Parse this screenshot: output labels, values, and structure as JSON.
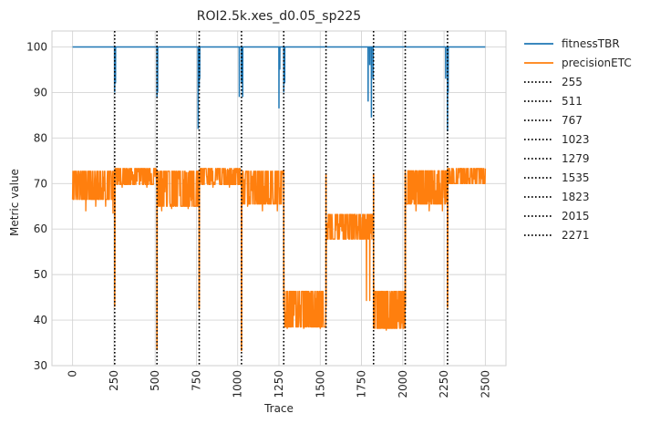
{
  "chart_data": {
    "type": "line",
    "title": "ROI2.5k.xes_d0.05_sp225",
    "xlabel": "Trace",
    "ylabel": "Metric value",
    "xlim": [
      -125,
      2625
    ],
    "ylim": [
      30,
      103.5
    ],
    "xticks": [
      0,
      250,
      500,
      750,
      1000,
      1250,
      1500,
      1750,
      2000,
      2250,
      2500
    ],
    "yticks": [
      30,
      40,
      50,
      60,
      70,
      80,
      90,
      100
    ],
    "xtick_labels": [
      "0",
      "250",
      "500",
      "750",
      "1000",
      "1250",
      "1500",
      "1750",
      "2000",
      "2250",
      "2500"
    ],
    "ytick_labels": [
      "30",
      "40",
      "50",
      "60",
      "70",
      "80",
      "90",
      "100"
    ],
    "grid": true,
    "legend_position": "outside-right",
    "legend": [
      "fitnessTBR",
      "precisionETC",
      "255",
      "511",
      "767",
      "1023",
      "1279",
      "1535",
      "1823",
      "2015",
      "2271"
    ],
    "colors": {
      "fitness": "#1f77b4",
      "precision": "#ff7f0e",
      "drift": "#000000"
    },
    "drift_points": [
      255,
      511,
      767,
      1023,
      1279,
      1535,
      1823,
      2015,
      2271
    ],
    "series": [
      {
        "name": "fitnessTBR",
        "baseline": 100,
        "x_range": [
          0,
          2500
        ],
        "dips": [
          [
            255,
            90
          ],
          [
            260,
            92
          ],
          [
            511,
            89
          ],
          [
            515,
            90
          ],
          [
            760,
            82
          ],
          [
            767,
            91
          ],
          [
            770,
            93
          ],
          [
            1010,
            89
          ],
          [
            1023,
            92
          ],
          [
            1030,
            89
          ],
          [
            1250,
            86.5
          ],
          [
            1255,
            95
          ],
          [
            1279,
            90
          ],
          [
            1285,
            92
          ],
          [
            1790,
            88
          ],
          [
            1800,
            96
          ],
          [
            1810,
            84.5
          ],
          [
            1820,
            93
          ],
          [
            2260,
            93
          ],
          [
            2271,
            81.5
          ],
          [
            2275,
            90
          ]
        ]
      },
      {
        "name": "precisionETC",
        "segments": [
          {
            "x0": 0,
            "x1": 255,
            "lo": 66.5,
            "hi": 72.7,
            "min_spikes": [
              [
                80,
                64
              ],
              [
                140,
                65
              ],
              [
                200,
                65
              ],
              [
                245,
                63.5
              ]
            ]
          },
          {
            "x0": 255,
            "x1": 511,
            "lo": 69.8,
            "hi": 73.3,
            "min_spikes": [
              [
                300,
                69.2
              ],
              [
                450,
                69.2
              ]
            ]
          },
          {
            "x0": 511,
            "x1": 767,
            "lo": 65,
            "hi": 72.7,
            "min_spikes": [
              [
                540,
                64
              ],
              [
                600,
                64.5
              ],
              [
                700,
                64.5
              ]
            ]
          },
          {
            "x0": 767,
            "x1": 1023,
            "lo": 69.8,
            "hi": 73.3,
            "min_spikes": [
              [
                850,
                69.2
              ],
              [
                950,
                69.2
              ]
            ]
          },
          {
            "x0": 1023,
            "x1": 1279,
            "lo": 65.5,
            "hi": 72.7,
            "min_spikes": [
              [
                1060,
                65
              ],
              [
                1150,
                64
              ],
              [
                1240,
                64
              ]
            ]
          },
          {
            "x0": 1279,
            "x1": 1535,
            "lo": 38.5,
            "hi": 46.3,
            "min_spikes": [
              [
                1300,
                38.2
              ],
              [
                1400,
                38.2
              ],
              [
                1500,
                38.2
              ]
            ]
          },
          {
            "x0": 1535,
            "x1": 1823,
            "lo": 57.8,
            "hi": 63.2,
            "min_spikes": [
              [
                1780,
                44.3
              ],
              [
                1800,
                44.3
              ]
            ]
          },
          {
            "x0": 1823,
            "x1": 2015,
            "lo": 38.2,
            "hi": 46.3,
            "min_spikes": [
              [
                1900,
                37.8
              ],
              [
                1960,
                38.2
              ]
            ]
          },
          {
            "x0": 2015,
            "x1": 2271,
            "lo": 65.5,
            "hi": 72.8,
            "min_spikes": [
              [
                2080,
                64
              ],
              [
                2160,
                64
              ],
              [
                2240,
                64
              ]
            ]
          },
          {
            "x0": 2271,
            "x1": 2500,
            "lo": 70,
            "hi": 73.3,
            "min_spikes": [
              [
                2350,
                70
              ]
            ]
          }
        ],
        "drops": [
          [
            255,
            43
          ],
          [
            511,
            33.5
          ],
          [
            767,
            42.5
          ],
          [
            1023,
            33.3
          ],
          [
            1279,
            43
          ],
          [
            1535,
            43
          ],
          [
            1823,
            38.5
          ],
          [
            2015,
            43
          ],
          [
            2271,
            42.8
          ]
        ]
      }
    ]
  }
}
